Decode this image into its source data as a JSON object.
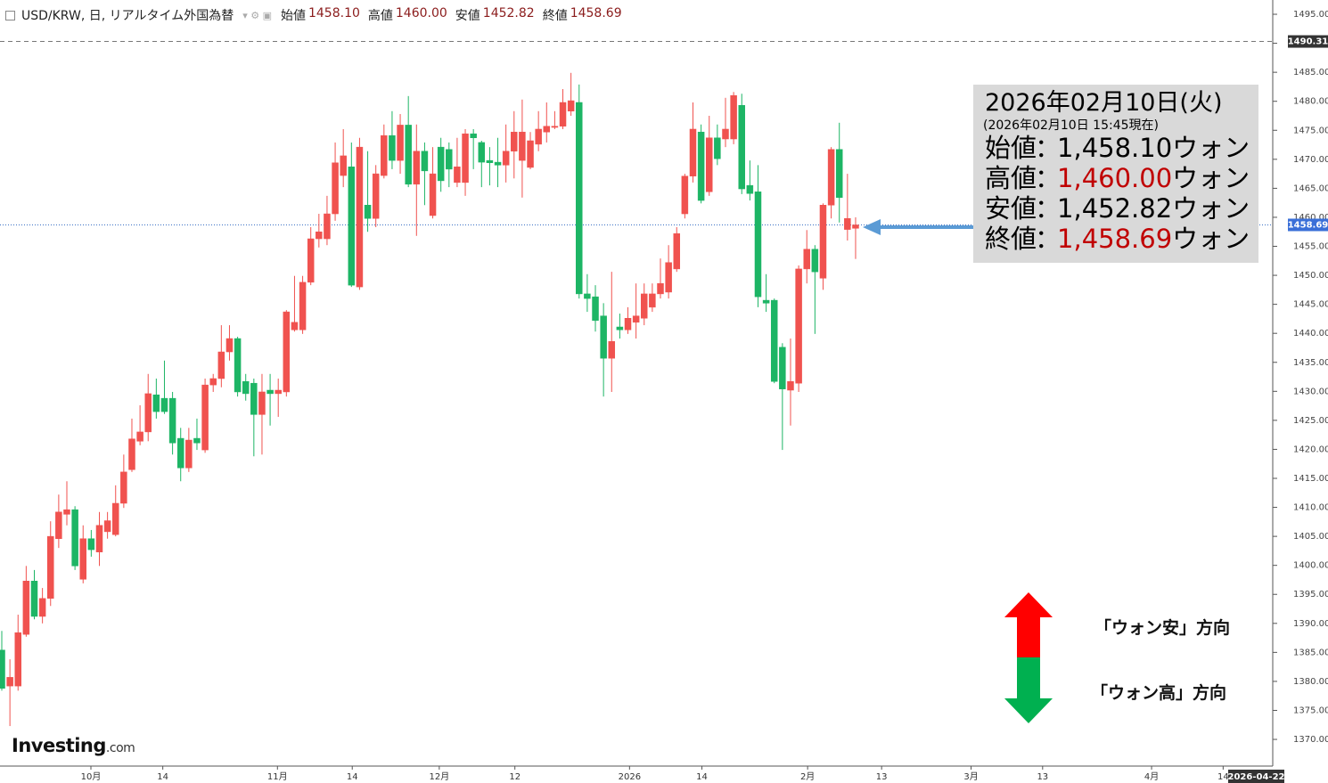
{
  "chart_data": {
    "type": "candlestick",
    "title": "USD/KRW, 日, リアルタイム外国為替",
    "header_items": [
      {
        "label": "始値",
        "value": "1458.10"
      },
      {
        "label": "高値",
        "value": "1460.00"
      },
      {
        "label": "安値",
        "value": "1452.82"
      },
      {
        "label": "終値",
        "value": "1458.69"
      }
    ],
    "up_color": "#f0524f",
    "down_color": "#1db565",
    "open": [
      1385.4,
      1379.2,
      1379.2,
      1388.1,
      1397.3,
      1391.2,
      1394.3,
      1404.6,
      1408.8,
      1409.6,
      1397.6,
      1404.6,
      1402.3,
      1405.8,
      1405.3,
      1410.7,
      1416.5,
      1421.4,
      1423.0,
      1429.4,
      1428.8,
      1428.8,
      1421.9,
      1416.8,
      1421.9,
      1419.9,
      1431.1,
      1432.2,
      1436.8,
      1439.1,
      1431.7,
      1431.4,
      1426.0,
      1430.2,
      1429.6,
      1429.9,
      1440.6,
      1440.6,
      1448.8,
      1456.3,
      1456.3,
      1460.6,
      1467.2,
      1468.7,
      1448.0,
      1462.1,
      1459.8,
      1467.2,
      1474.1,
      1469.8,
      1475.9,
      1465.7,
      1471.4,
      1460.3,
      1472.1,
      1471.7,
      1466.0,
      1466.0,
      1474.4,
      1472.9,
      1469.8,
      1469.5,
      1469.0,
      1471.4,
      1469.8,
      1468.6,
      1472.6,
      1474.7,
      1475.5,
      1475.7,
      1478.3,
      1479.8,
      1446.8,
      1446.3,
      1443.0,
      1435.7,
      1441.1,
      1440.6,
      1441.9,
      1442.6,
      1444.5,
      1446.8,
      1447.1,
      1451.1,
      1460.6,
      1467.1,
      1474.7,
      1464.4,
      1473.7,
      1473.5,
      1473.5,
      1479.3,
      1465.5,
      1464.4,
      1445.7,
      1445.7,
      1437.6,
      1430.2,
      1431.4,
      1451.1,
      1454.5,
      1449.5,
      1462.1,
      1471.7,
      1457.9,
      1458.1
    ],
    "high": [
      1388.7,
      1383.8,
      1391.5,
      1399.9,
      1399.2,
      1396.1,
      1407.6,
      1412.2,
      1414.5,
      1410.2,
      1406.9,
      1406.1,
      1409.2,
      1409.2,
      1413.8,
      1419.1,
      1425.3,
      1427.6,
      1433.0,
      1432.2,
      1435.3,
      1429.9,
      1423.7,
      1423.7,
      1425.3,
      1432.2,
      1433.0,
      1441.4,
      1441.4,
      1439.4,
      1433.0,
      1432.2,
      1433.0,
      1433.0,
      1432.2,
      1444.0,
      1449.9,
      1449.9,
      1458.3,
      1460.6,
      1463.7,
      1472.9,
      1475.2,
      1472.9,
      1473.7,
      1471.4,
      1469.0,
      1476.0,
      1478.3,
      1477.8,
      1480.9,
      1476.0,
      1472.9,
      1472.1,
      1473.7,
      1472.9,
      1473.7,
      1475.2,
      1475.2,
      1473.2,
      1472.1,
      1473.7,
      1476.0,
      1478.3,
      1480.3,
      1474.7,
      1478.3,
      1479.8,
      1478.3,
      1482.1,
      1484.9,
      1482.9,
      1450.2,
      1448.3,
      1445.2,
      1450.6,
      1443.4,
      1444.5,
      1448.6,
      1448.6,
      1448.6,
      1452.9,
      1455.2,
      1458.3,
      1467.5,
      1479.8,
      1476.0,
      1477.5,
      1476.0,
      1480.6,
      1481.6,
      1481.3,
      1469.8,
      1469.0,
      1450.2,
      1446.0,
      1438.3,
      1439.1,
      1451.7,
      1457.8,
      1455.2,
      1462.4,
      1472.1,
      1476.3,
      1467.5,
      1460.0
    ],
    "low": [
      1378.4,
      1372.3,
      1378.4,
      1387.7,
      1390.7,
      1390.0,
      1393.0,
      1403.0,
      1406.9,
      1399.2,
      1396.9,
      1401.5,
      1399.9,
      1404.6,
      1405.0,
      1409.9,
      1416.1,
      1420.7,
      1421.4,
      1425.3,
      1426.1,
      1419.1,
      1414.5,
      1416.1,
      1419.9,
      1419.4,
      1429.9,
      1430.7,
      1435.3,
      1429.1,
      1428.4,
      1418.8,
      1419.1,
      1424.1,
      1425.6,
      1429.1,
      1440.3,
      1439.9,
      1448.3,
      1454.8,
      1455.2,
      1459.4,
      1465.2,
      1448.0,
      1447.5,
      1457.5,
      1458.3,
      1466.7,
      1468.3,
      1467.5,
      1465.2,
      1456.8,
      1462.1,
      1459.8,
      1464.4,
      1465.2,
      1465.2,
      1463.7,
      1468.3,
      1465.2,
      1465.5,
      1465.2,
      1466.0,
      1466.7,
      1463.4,
      1468.3,
      1471.4,
      1472.9,
      1475.2,
      1475.2,
      1477.5,
      1446.0,
      1443.7,
      1440.3,
      1429.1,
      1429.9,
      1439.1,
      1439.9,
      1439.1,
      1441.4,
      1443.7,
      1446.0,
      1446.0,
      1450.6,
      1459.8,
      1466.0,
      1462.4,
      1463.7,
      1469.0,
      1472.1,
      1472.6,
      1464.0,
      1462.9,
      1444.5,
      1443.7,
      1431.4,
      1419.9,
      1424.1,
      1429.9,
      1448.6,
      1439.9,
      1447.5,
      1459.8,
      1459.1,
      1456.0,
      1452.82
    ],
    "close": [
      1378.8,
      1380.7,
      1388.4,
      1397.3,
      1391.2,
      1394.3,
      1405.0,
      1409.2,
      1409.6,
      1399.9,
      1404.6,
      1402.7,
      1406.9,
      1407.7,
      1410.7,
      1416.1,
      1421.8,
      1423.0,
      1429.6,
      1426.5,
      1426.5,
      1421.1,
      1416.8,
      1421.6,
      1421.1,
      1431.1,
      1432.2,
      1436.8,
      1439.1,
      1429.9,
      1429.6,
      1426.0,
      1429.9,
      1429.6,
      1430.2,
      1443.7,
      1441.9,
      1448.8,
      1456.3,
      1457.5,
      1460.6,
      1469.4,
      1470.6,
      1448.3,
      1472.1,
      1459.8,
      1467.5,
      1474.1,
      1469.8,
      1475.9,
      1465.7,
      1471.4,
      1468.0,
      1467.5,
      1466.3,
      1468.3,
      1468.7,
      1474.4,
      1473.7,
      1469.5,
      1469.4,
      1469.0,
      1471.4,
      1474.7,
      1474.7,
      1473.2,
      1475.2,
      1475.7,
      1475.7,
      1479.8,
      1480.1,
      1446.8,
      1446.0,
      1442.2,
      1435.7,
      1438.6,
      1440.6,
      1442.6,
      1443.0,
      1446.8,
      1446.8,
      1448.6,
      1452.2,
      1457.2,
      1467.1,
      1475.2,
      1462.9,
      1473.7,
      1470.1,
      1475.2,
      1481.0,
      1464.9,
      1464.1,
      1446.3,
      1445.2,
      1431.7,
      1430.4,
      1431.7,
      1451.1,
      1454.5,
      1450.6,
      1462.1,
      1471.7,
      1463.4,
      1459.8,
      1458.69
    ],
    "xlim": [
      -0.22,
      156.3
    ],
    "xticks": [
      {
        "value": 10.96,
        "label": "10月"
      },
      {
        "value": 19.8,
        "label": "14"
      },
      {
        "value": 33.9,
        "label": "11月"
      },
      {
        "value": 43.1,
        "label": "14"
      },
      {
        "value": 53.8,
        "label": "12月"
      },
      {
        "value": 63.1,
        "label": "12"
      },
      {
        "value": 77.2,
        "label": "2026"
      },
      {
        "value": 86.1,
        "label": "14"
      },
      {
        "value": 99.1,
        "label": "2月"
      },
      {
        "value": 108.2,
        "label": "13"
      },
      {
        "value": 119.2,
        "label": "3月"
      },
      {
        "value": 128.0,
        "label": "13"
      },
      {
        "value": 141.4,
        "label": "4月"
      },
      {
        "value": 150.2,
        "label": "14"
      }
    ],
    "ylim": [
      1365.4,
      1497.46
    ],
    "yticks": [
      {
        "value": 1370,
        "label": "1370.00"
      },
      {
        "value": 1375,
        "label": "1375.00"
      },
      {
        "value": 1380,
        "label": "1380.00"
      },
      {
        "value": 1385,
        "label": "1385.00"
      },
      {
        "value": 1390,
        "label": "1390.00"
      },
      {
        "value": 1395,
        "label": "1395.00"
      },
      {
        "value": 1400,
        "label": "1400.00"
      },
      {
        "value": 1405,
        "label": "1405.00"
      },
      {
        "value": 1410,
        "label": "1410.00"
      },
      {
        "value": 1415,
        "label": "1415.00"
      },
      {
        "value": 1420,
        "label": "1420.00"
      },
      {
        "value": 1425,
        "label": "1425.00"
      },
      {
        "value": 1430,
        "label": "1430.00"
      },
      {
        "value": 1435,
        "label": "1435.00"
      },
      {
        "value": 1440,
        "label": "1440.00"
      },
      {
        "value": 1445,
        "label": "1445.00"
      },
      {
        "value": 1450,
        "label": "1450.00"
      },
      {
        "value": 1455,
        "label": "1455.00"
      },
      {
        "value": 1460,
        "label": "1460.00"
      },
      {
        "value": 1465,
        "label": "1465.00"
      },
      {
        "value": 1470,
        "label": "1470.00"
      },
      {
        "value": 1475,
        "label": "1475.00"
      },
      {
        "value": 1480,
        "label": "1480.00"
      },
      {
        "value": 1485,
        "label": "1485.00"
      },
      {
        "value": 1490,
        "label": "1490.00"
      },
      {
        "value": 1495,
        "label": "1495.00"
      }
    ],
    "grid": false,
    "high_line": 1490.31,
    "price_line": 1458.69,
    "date_label": "2026-04-22",
    "info_box": {
      "title": "2026年02月10日(火)",
      "subtitle": "(2026年02月10日 15:45現在)",
      "rows": [
        {
          "label": "始値",
          "sep": "：",
          "value": "1,458.10",
          "unit": "ウォン",
          "color": "#000000"
        },
        {
          "label": "高値",
          "sep": "：",
          "value": "1,460.00",
          "unit": "ウォン",
          "color": "#c00000"
        },
        {
          "label": "安値",
          "sep": "：",
          "value": "1,452.82",
          "unit": "ウォン",
          "color": "#000000"
        },
        {
          "label": "終値",
          "sep": "：",
          "value": "1,458.69",
          "unit": "ウォン",
          "color": "#c00000"
        }
      ]
    },
    "annotations": [
      "「ウォン安」方向",
      "「ウォン高」方向"
    ],
    "logo": {
      "main": "Investing",
      "suffix": ".com"
    }
  }
}
